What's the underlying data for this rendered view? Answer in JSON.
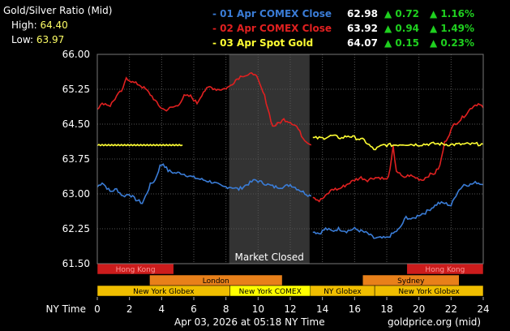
{
  "header": {
    "title": "Gold/Silver Ratio (Mid)",
    "high_label": "High:",
    "high_value": "64.40",
    "low_label": "Low:",
    "low_value": "63.97"
  },
  "legend": [
    {
      "name": "- 01 Apr COMEX Close",
      "value": "62.98",
      "change": "▲ 0.72",
      "pct": "▲ 1.16%",
      "color": "#3a7cd6"
    },
    {
      "name": "- 02 Apr COMEX Close",
      "value": "63.92",
      "change": "▲ 0.94",
      "pct": "▲ 1.49%",
      "color": "#e02020"
    },
    {
      "name": "- 03 Apr Spot Gold",
      "value": "64.07",
      "change": "▲ 0.15",
      "pct": "▲ 0.23%",
      "color": "#ffff33"
    }
  ],
  "colors": {
    "up": "#1fd01f",
    "grid": "#555555",
    "closed_band": "#333333"
  },
  "footer": {
    "date": "Apr 03, 2026 at 05:18 NY Time",
    "site": "goldprice.org (mid)"
  },
  "chart_data": {
    "type": "line",
    "xlabel": "NY Time",
    "xlim": [
      0,
      24
    ],
    "ylim": [
      61.5,
      66.0
    ],
    "x_ticks": [
      0,
      2,
      4,
      6,
      8,
      10,
      12,
      14,
      16,
      18,
      20,
      22,
      24
    ],
    "y_ticks": [
      "61.50",
      "62.25",
      "63.00",
      "63.75",
      "64.50",
      "65.25",
      "66.00"
    ],
    "closed_band": {
      "start": 8.2,
      "end": 13.2,
      "label": "Market Closed"
    },
    "series": [
      {
        "name": "01 Apr COMEX Close",
        "color": "#3a7cd6",
        "segments": [
          [
            [
              0,
              63.15
            ],
            [
              0.3,
              63.25
            ],
            [
              0.8,
              63.05
            ],
            [
              1.2,
              63.1
            ],
            [
              1.6,
              62.95
            ],
            [
              2,
              63.0
            ],
            [
              2.3,
              62.9
            ],
            [
              2.8,
              62.8
            ],
            [
              3.0,
              62.95
            ],
            [
              3.3,
              63.2
            ],
            [
              3.6,
              63.3
            ],
            [
              3.9,
              63.6
            ],
            [
              4.1,
              63.65
            ],
            [
              4.4,
              63.5
            ],
            [
              4.8,
              63.45
            ],
            [
              5.2,
              63.45
            ],
            [
              5.6,
              63.4
            ],
            [
              6,
              63.35
            ],
            [
              6.6,
              63.3
            ],
            [
              7.2,
              63.25
            ],
            [
              7.8,
              63.15
            ],
            [
              8.3,
              63.15
            ],
            [
              8.8,
              63.1
            ],
            [
              9.3,
              63.2
            ],
            [
              9.8,
              63.3
            ],
            [
              10.2,
              63.25
            ],
            [
              10.6,
              63.2
            ],
            [
              11,
              63.15
            ],
            [
              11.6,
              63.15
            ],
            [
              12,
              63.2
            ],
            [
              12.5,
              63.1
            ],
            [
              13.0,
              63.0
            ],
            [
              13.3,
              62.95
            ]
          ],
          [
            [
              13.4,
              62.2
            ],
            [
              13.8,
              62.15
            ],
            [
              14.2,
              62.25
            ],
            [
              14.6,
              62.2
            ],
            [
              15,
              62.25
            ],
            [
              15.5,
              62.2
            ],
            [
              16,
              62.25
            ],
            [
              16.4,
              62.2
            ],
            [
              16.8,
              62.15
            ],
            [
              17.2,
              62.05
            ],
            [
              17.6,
              62.05
            ],
            [
              18,
              62.05
            ],
            [
              18.4,
              62.15
            ],
            [
              18.8,
              62.25
            ],
            [
              19.2,
              62.5
            ],
            [
              19.6,
              62.45
            ],
            [
              20,
              62.55
            ],
            [
              20.4,
              62.6
            ],
            [
              20.8,
              62.7
            ],
            [
              21.2,
              62.8
            ],
            [
              21.6,
              62.8
            ],
            [
              22,
              62.75
            ],
            [
              22.4,
              63.05
            ],
            [
              22.8,
              63.2
            ],
            [
              23.2,
              63.2
            ],
            [
              23.6,
              63.25
            ],
            [
              24,
              63.2
            ]
          ]
        ]
      },
      {
        "name": "02 Apr COMEX Close",
        "color": "#e02020",
        "segments": [
          [
            [
              0,
              64.85
            ],
            [
              0.4,
              64.95
            ],
            [
              0.8,
              64.9
            ],
            [
              1.2,
              65.1
            ],
            [
              1.6,
              65.25
            ],
            [
              1.8,
              65.5
            ],
            [
              2.2,
              65.4
            ],
            [
              2.6,
              65.35
            ],
            [
              3,
              65.25
            ],
            [
              3.4,
              65.1
            ],
            [
              3.8,
              64.9
            ],
            [
              4.2,
              64.8
            ],
            [
              4.6,
              64.85
            ],
            [
              5,
              64.9
            ],
            [
              5.4,
              65.1
            ],
            [
              5.8,
              65.1
            ],
            [
              6.2,
              64.95
            ],
            [
              6.6,
              65.2
            ],
            [
              7,
              65.3
            ],
            [
              7.4,
              65.25
            ],
            [
              7.8,
              65.25
            ],
            [
              8.2,
              65.3
            ],
            [
              8.6,
              65.45
            ],
            [
              9,
              65.55
            ],
            [
              9.4,
              65.55
            ],
            [
              9.8,
              65.6
            ],
            [
              10.1,
              65.35
            ],
            [
              10.4,
              65.1
            ],
            [
              10.6,
              64.85
            ],
            [
              10.9,
              64.45
            ],
            [
              11.2,
              64.5
            ],
            [
              11.6,
              64.6
            ],
            [
              12,
              64.55
            ],
            [
              12.4,
              64.45
            ],
            [
              12.8,
              64.2
            ],
            [
              13.3,
              64.05
            ]
          ],
          [
            [
              13.4,
              62.95
            ],
            [
              13.8,
              62.85
            ],
            [
              14.2,
              62.95
            ],
            [
              14.6,
              63.1
            ],
            [
              15,
              63.1
            ],
            [
              15.5,
              63.2
            ],
            [
              16,
              63.3
            ],
            [
              16.4,
              63.35
            ],
            [
              16.8,
              63.3
            ],
            [
              17.2,
              63.35
            ],
            [
              17.6,
              63.35
            ],
            [
              18,
              63.3
            ],
            [
              18.2,
              63.5
            ],
            [
              18.4,
              64.0
            ],
            [
              18.6,
              63.5
            ],
            [
              19,
              63.35
            ],
            [
              19.4,
              63.4
            ],
            [
              19.8,
              63.35
            ],
            [
              20.2,
              63.3
            ],
            [
              20.6,
              63.4
            ],
            [
              21,
              63.45
            ],
            [
              21.3,
              63.6
            ],
            [
              21.6,
              64.1
            ],
            [
              21.9,
              64.3
            ],
            [
              22.2,
              64.5
            ],
            [
              22.6,
              64.6
            ],
            [
              23,
              64.75
            ],
            [
              23.4,
              64.9
            ],
            [
              23.8,
              64.95
            ],
            [
              24,
              64.85
            ]
          ]
        ]
      },
      {
        "name": "03 Apr Spot Gold",
        "color": "#ffff33",
        "segments": [
          [
            [
              0,
              64.05
            ],
            [
              5.3,
              64.05
            ]
          ],
          [
            [
              13.4,
              64.2
            ],
            [
              14,
              64.2
            ],
            [
              14.6,
              64.25
            ],
            [
              15.2,
              64.2
            ],
            [
              15.6,
              64.25
            ],
            [
              16.1,
              64.2
            ],
            [
              16.6,
              64.15
            ],
            [
              17.2,
              63.95
            ],
            [
              17.8,
              64.05
            ],
            [
              18.4,
              64.05
            ],
            [
              19,
              64.07
            ],
            [
              20,
              64.06
            ],
            [
              21,
              64.08
            ],
            [
              22,
              64.06
            ],
            [
              23,
              64.07
            ],
            [
              24,
              64.07
            ]
          ]
        ]
      }
    ]
  },
  "sessions": [
    {
      "label": "Hong Kong",
      "start": 0,
      "end": 4.75,
      "row": 0,
      "color": "#cc1c1c"
    },
    {
      "label": "Hong Kong",
      "start": 19.25,
      "end": 24,
      "row": 0,
      "color": "#cc1c1c"
    },
    {
      "label": "London",
      "start": 3.25,
      "end": 11.5,
      "row": 1,
      "color": "#e8801a"
    },
    {
      "label": "Sydney",
      "start": 16.5,
      "end": 22.5,
      "row": 1,
      "color": "#e8801a"
    },
    {
      "label": "New York Globex",
      "start": 0,
      "end": 8.25,
      "row": 2,
      "color": "#f0be00"
    },
    {
      "label": "New York COMEX",
      "start": 8.25,
      "end": 13.25,
      "row": 2,
      "color": "#ffff00"
    },
    {
      "label": "NY Globex",
      "start": 13.25,
      "end": 17.25,
      "row": 2,
      "color": "#f0be00"
    },
    {
      "label": "New York Globex",
      "start": 17.25,
      "end": 24,
      "row": 2,
      "color": "#f0be00"
    }
  ]
}
